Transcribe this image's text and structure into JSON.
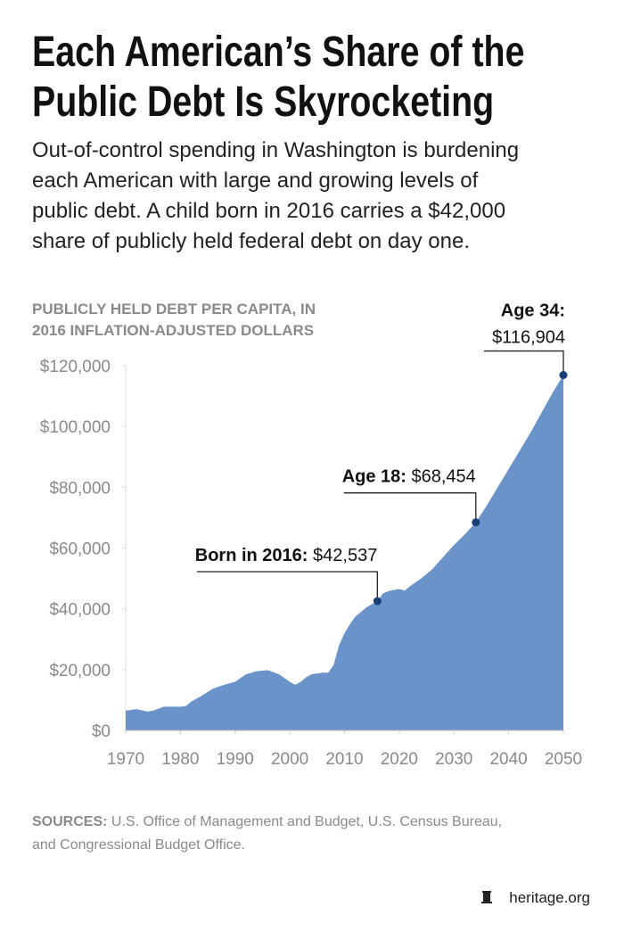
{
  "header": {
    "title_lines": [
      "Each American’s Share of the",
      "Public Debt Is Skyrocketing"
    ],
    "subtitle_lines": [
      "Out-of-control spending in Washington is burdening",
      "each American with large and growing levels of",
      "public debt. A child born in 2016 carries a $42,000",
      "share of publicly held federal debt on day one."
    ]
  },
  "chart_data": {
    "type": "area",
    "y_axis_title_lines": [
      "PUBLICLY HELD DEBT PER CAPITA, IN",
      "2016 INFLATION-ADJUSTED DOLLARS"
    ],
    "x": [
      1970,
      1972,
      1974,
      1975,
      1977,
      1979,
      1980,
      1981,
      1982,
      1984,
      1986,
      1988,
      1990,
      1992,
      1994,
      1996,
      1998,
      2000,
      2001,
      2002,
      2003,
      2004,
      2006,
      2007,
      2008,
      2009,
      2010,
      2011,
      2012,
      2013,
      2014,
      2015,
      2016,
      2017,
      2018,
      2019,
      2020,
      2021,
      2022,
      2024,
      2026,
      2028,
      2030,
      2032,
      2034,
      2036,
      2038,
      2040,
      2042,
      2044,
      2046,
      2048,
      2050
    ],
    "values": [
      6500,
      7000,
      6200,
      6500,
      7800,
      7800,
      7800,
      8000,
      9500,
      11500,
      13800,
      15000,
      16000,
      18500,
      19500,
      19800,
      18500,
      16000,
      15000,
      16000,
      17500,
      18500,
      19000,
      19000,
      21500,
      28000,
      32000,
      35000,
      37500,
      39000,
      40500,
      41500,
      42537,
      45000,
      45800,
      46200,
      46500,
      46000,
      47500,
      50000,
      53000,
      57000,
      61000,
      64500,
      68454,
      74000,
      80000,
      86000,
      92000,
      98000,
      104500,
      111000,
      116904
    ],
    "point_labels": [
      null,
      null,
      null,
      null,
      null,
      null,
      null,
      null,
      null,
      null,
      null,
      null,
      null,
      null,
      null,
      null,
      null,
      null,
      null,
      null,
      null,
      null,
      null,
      null,
      null,
      null,
      null,
      null,
      null,
      null,
      null,
      null,
      "Born in 2016:",
      null,
      null,
      null,
      null,
      null,
      null,
      null,
      null,
      null,
      null,
      null,
      "Age 18:",
      null,
      null,
      null,
      null,
      null,
      null,
      null,
      "Age 34:"
    ],
    "value_labels": [
      null,
      null,
      null,
      null,
      null,
      null,
      null,
      null,
      null,
      null,
      null,
      null,
      null,
      null,
      null,
      null,
      null,
      null,
      null,
      null,
      null,
      null,
      null,
      null,
      null,
      null,
      null,
      null,
      null,
      null,
      null,
      null,
      "$42,537",
      null,
      null,
      null,
      null,
      null,
      null,
      null,
      null,
      null,
      null,
      null,
      "$68,454",
      null,
      null,
      null,
      null,
      null,
      null,
      null,
      "$116,904"
    ],
    "color": "#6a93c9",
    "marker_color": "#173f78",
    "xlim": [
      1970,
      2050
    ],
    "xticks": [
      1970,
      1980,
      1990,
      2000,
      2010,
      2020,
      2030,
      2040,
      2050
    ],
    "ylim": [
      0,
      120000
    ],
    "yticks": [
      {
        "value": 0,
        "label": "$0"
      },
      {
        "value": 20000,
        "label": "$20,000"
      },
      {
        "value": 40000,
        "label": "$40,000"
      },
      {
        "value": 60000,
        "label": "$60,000"
      },
      {
        "value": 80000,
        "label": "$80,000"
      },
      {
        "value": 100000,
        "label": "$100,000"
      },
      {
        "value": 120000,
        "label": "$120,000"
      }
    ]
  },
  "footer": {
    "sources_label": "SOURCES:",
    "sources_lines": [
      "U.S. Office of Management and Budget, U.S. Census Bureau,",
      "and Congressional Budget Office."
    ],
    "logo": "heritage.org"
  }
}
